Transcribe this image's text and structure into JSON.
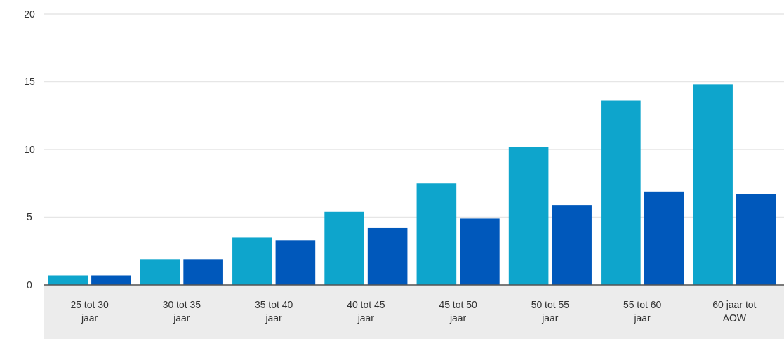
{
  "chart_data": {
    "type": "bar",
    "categories": [
      "25 tot 30 jaar",
      "30 tot 35 jaar",
      "35 tot 40 jaar",
      "40 tot 45 jaar",
      "45 tot 50 jaar",
      "50 tot 55 jaar",
      "55 tot 60 jaar",
      "60 jaar tot AOW"
    ],
    "series": [
      {
        "color": "#0ea5cc",
        "values": [
          0.7,
          1.9,
          3.5,
          5.4,
          7.5,
          10.2,
          13.6,
          14.8
        ]
      },
      {
        "color": "#0058bb",
        "values": [
          0.7,
          1.9,
          3.3,
          4.2,
          4.9,
          5.9,
          6.9,
          6.7
        ]
      }
    ],
    "ylim": [
      0,
      20
    ],
    "yticks": [
      0,
      5,
      10,
      15,
      20
    ],
    "grid": "y"
  }
}
